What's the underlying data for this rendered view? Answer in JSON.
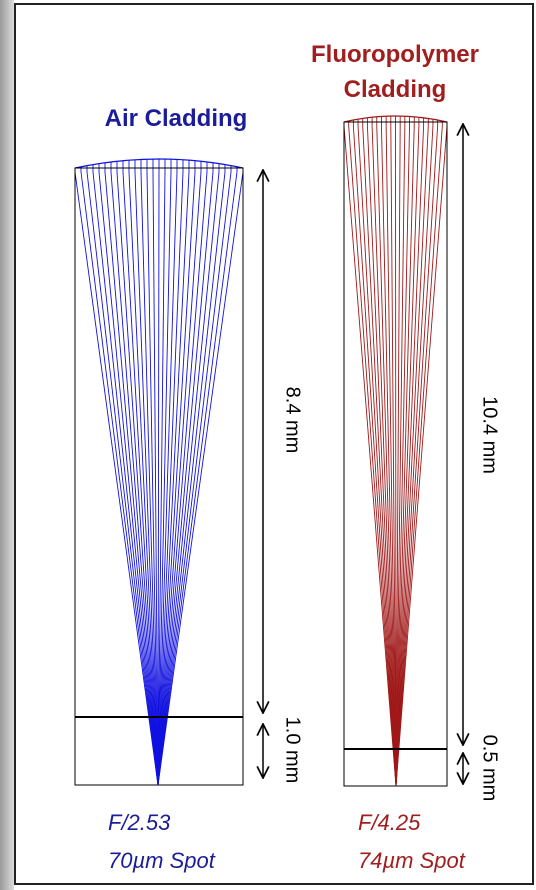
{
  "panels": [
    {
      "title": [
        "Air Cladding"
      ],
      "dimensions": [
        "8.4 mm",
        "1.0 mm"
      ],
      "f_number": "F/2.53",
      "spot": "70µm Spot"
    },
    {
      "title": [
        "Fluoropolymer",
        "Cladding"
      ],
      "dimensions": [
        "10.4 mm",
        "0.5 mm"
      ],
      "f_number": "F/4.25",
      "spot": "74µm Spot"
    }
  ]
}
